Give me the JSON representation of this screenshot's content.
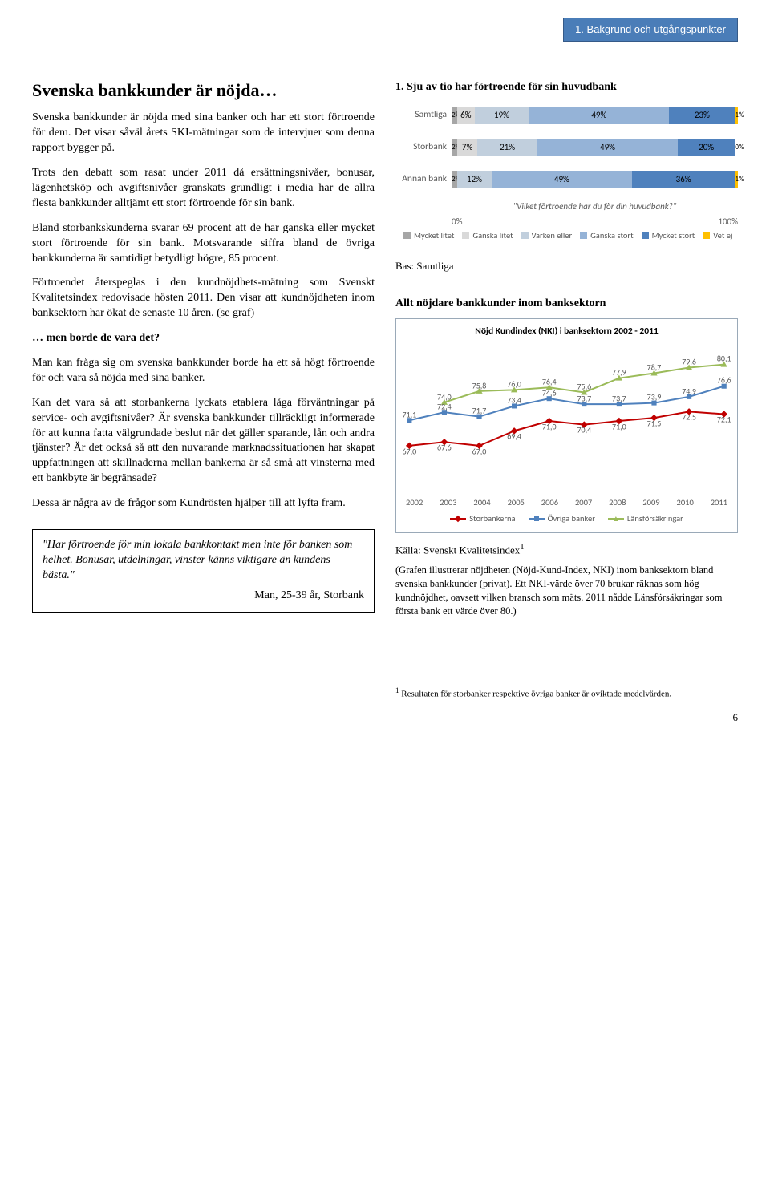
{
  "header_box": "1. Bakgrund och utgångspunkter",
  "left": {
    "title": "Svenska bankkunder är nöjda…",
    "p1": "Svenska bankkunder är nöjda med sina banker och har ett stort förtroende för dem. Det visar såväl årets SKI-mätningar som de intervjuer som denna rapport bygger på.",
    "p2": "Trots den debatt som rasat under 2011 då ersättningsnivåer, bonusar, lägenhetsköp och avgiftsnivåer granskats grundligt i media har de allra flesta bankkunder alltjämt ett stort förtroende för sin bank.",
    "p3": "Bland storbankskunderna svarar 69 procent att de har ganska eller mycket stort förtroende för sin bank. Motsvarande siffra bland de övriga bankkunderna är samtidigt betydligt högre, 85 procent.",
    "p4": "Förtroendet återspeglas i den kundnöjdhets-mätning som Svenskt Kvalitetsindex redovisade hösten 2011. Den visar att kundnöjdheten inom banksektorn har ökat de senaste 10 åren. (se graf)",
    "sub": "… men borde de vara det?",
    "p5": "Man kan fråga sig om svenska bankkunder borde ha ett så högt förtroende för och vara så nöjda med sina banker.",
    "p6": "Kan det vara så att storbankerna lyckats etablera låga förväntningar på service- och avgiftsnivåer? Är svenska bankkunder tillräckligt informerade för att kunna fatta välgrundade beslut när det gäller sparande, lån och andra tjänster? Är det också så att den nuvarande marknadssituationen har skapat uppfattningen att skillnaderna mellan bankerna är så små att vinsterna med ett bankbyte är begränsade?",
    "p7": "Dessa är några av de frågor som Kundrösten hjälper till att lyfta fram.",
    "quote": "\"Har förtroende för min lokala bankkontakt men inte för banken som helhet. Bonusar, utdelningar, vinster känns viktigare än kundens bästa.\"",
    "quote_attrib": "Man, 25-39 år, Storbank"
  },
  "chart1": {
    "title": "1. Sju av tio har förtroende för sin huvudbank",
    "question_text": "\"Vilket förtroende har du för din huvudbank?\"",
    "axis_left": "0%",
    "axis_right": "100%",
    "bas": "Bas: Samtliga",
    "colors": {
      "mycket_litet": "#a6a6a6",
      "ganska_litet": "#d9d9d9",
      "varken": "#c1cfdd",
      "ganska_stort": "#95b3d7",
      "mycket_stort": "#4f81bd",
      "vet_ej": "#ffc000"
    },
    "legend": [
      "Mycket litet",
      "Ganska litet",
      "Varken eller",
      "Ganska stort",
      "Mycket stort",
      "Vet ej"
    ],
    "rows": [
      {
        "label": "Samtliga",
        "segs": [
          {
            "v": 2,
            "t": "2%"
          },
          {
            "v": 6,
            "t": "6%"
          },
          {
            "v": 19,
            "t": "19%"
          },
          {
            "v": 49,
            "t": "49%"
          },
          {
            "v": 23,
            "t": "23%"
          },
          {
            "v": 1,
            "t": "1%"
          }
        ]
      },
      {
        "label": "Storbank",
        "segs": [
          {
            "v": 2,
            "t": "2%"
          },
          {
            "v": 7,
            "t": "7%"
          },
          {
            "v": 21,
            "t": "21%"
          },
          {
            "v": 49,
            "t": "49%"
          },
          {
            "v": 20,
            "t": "20%"
          },
          {
            "v": 0,
            "t": "0%"
          }
        ]
      },
      {
        "label": "Annan bank",
        "segs": [
          {
            "v": 2,
            "t": "2%"
          },
          {
            "v": 12,
            "t": "12%"
          },
          {
            "v": 49,
            "t": "49%"
          },
          {
            "v": 36,
            "t": "36%"
          },
          {
            "v": 1,
            "t": "1%"
          }
        ]
      }
    ],
    "annan_color_order": [
      "mycket_litet",
      "varken",
      "ganska_stort",
      "mycket_stort",
      "vet_ej"
    ]
  },
  "chart2": {
    "section_title": "Allt nöjdare bankkunder inom banksektorn",
    "chart_title": "Nöjd Kundindex (NKI) i banksektorn 2002 - 2011",
    "years": [
      "2002",
      "2003",
      "2004",
      "2005",
      "2006",
      "2007",
      "2008",
      "2009",
      "2010",
      "2011"
    ],
    "ymin": 60,
    "ymax": 82,
    "series": [
      {
        "name": "Storbankerna",
        "color": "#c00000",
        "marker": "diamond",
        "values": [
          67.0,
          67.6,
          67.0,
          69.4,
          71.0,
          70.4,
          71.0,
          71.5,
          72.5,
          72.1
        ]
      },
      {
        "name": "Övriga banker",
        "color": "#4f81bd",
        "marker": "square",
        "values": [
          71.1,
          72.4,
          71.7,
          73.4,
          74.6,
          73.7,
          73.7,
          73.9,
          74.9,
          76.6
        ]
      },
      {
        "name": "Länsförsäkringar",
        "color": "#9bbb59",
        "marker": "triangle",
        "values": [
          74.0,
          75.8,
          76.0,
          76.4,
          75.6,
          77.9,
          78.7,
          79.6,
          80.1
        ]
      }
    ],
    "kalla": "Källa: Svenskt Kvalitetsindex",
    "caption": "(Grafen illustrerar nöjdheten (Nöjd-Kund-Index, NKI) inom banksektorn bland svenska bankkunder (privat). Ett NKI-värde över 70 brukar räknas som hög kundnöjdhet, oavsett vilken bransch som mäts. 2011 nådde Länsförsäkringar som första bank ett värde över 80.)"
  },
  "footnote": "Resultaten för storbanker respektive övriga banker är oviktade medelvärden.",
  "footnote_num": "1",
  "page_num": "6"
}
